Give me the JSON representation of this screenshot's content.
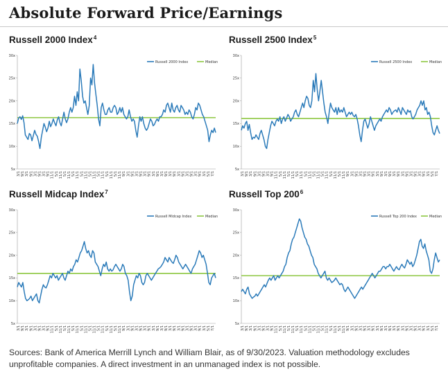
{
  "page": {
    "title": "Absolute Forward Price/Earnings",
    "footnote": "Sources: Bank of America Merrill Lynch and William Blair, as of 9/30/2023. Valuation methodology excludes unprofitable companies. A direct investment in an unmanaged index is not possible."
  },
  "colors": {
    "series": "#2a7ab9",
    "median": "#8cc63f",
    "axis": "#999999",
    "grid": "#e6e6e6"
  },
  "panels": [
    {
      "title": "Russell 2000 Index",
      "sup": "4"
    },
    {
      "title": "Russell 2500 Index",
      "sup": "5"
    },
    {
      "title": "Russell Midcap Index",
      "sup": "7"
    },
    {
      "title": "Russell Top 200",
      "sup": "6"
    }
  ],
  "chart_data": [
    {
      "type": "line",
      "title": "Russell 2000 Index",
      "series_name": "Russell 2000 Index",
      "median_name": "Median",
      "ylim": [
        5,
        30
      ],
      "yticks": [
        "5x",
        "10x",
        "15x",
        "20x",
        "25x",
        "30x"
      ],
      "xticks": [
        "3/1",
        "9/1",
        "3/1",
        "9/1",
        "3/1",
        "9/1",
        "3/1",
        "9/1",
        "11/1",
        "5/1",
        "11/1",
        "5/1",
        "11/1",
        "5/1",
        "11/1",
        "5/1",
        "11/1",
        "5/1",
        "11/1",
        "5/1",
        "11/1",
        "5/1",
        "11/1",
        "5/1",
        "11/1",
        "9/1",
        "3/1",
        "9/1",
        "3/1",
        "9/1",
        "3/1",
        "9/1",
        "3/1",
        "9/1",
        "3/1",
        "9/1",
        "3/1",
        "9/1",
        "3/1",
        "9/1",
        "3/1",
        "9/1",
        "3/1",
        "9/1",
        "3/1",
        "5/1",
        "7/1"
      ],
      "median": 16.3,
      "values": [
        15.0,
        16.2,
        16.5,
        15.9,
        16.7,
        15.2,
        12.5,
        12.0,
        11.5,
        12.8,
        12.5,
        11.2,
        12.3,
        13.5,
        12.6,
        12.2,
        11.0,
        9.5,
        12.0,
        13.5,
        15.0,
        14.2,
        13.2,
        14.0,
        15.5,
        14.3,
        15.0,
        16.0,
        15.2,
        14.5,
        15.8,
        16.5,
        15.2,
        14.5,
        16.0,
        17.5,
        16.0,
        15.2,
        16.0,
        17.5,
        18.5,
        17.5,
        18.5,
        21.0,
        19.0,
        22.0,
        20.0,
        27.0,
        24.5,
        21.0,
        19.5,
        20.0,
        18.5,
        17.0,
        19.0,
        25.0,
        23.5,
        28.0,
        24.0,
        21.5,
        19.0,
        16.0,
        14.5,
        18.5,
        19.5,
        18.0,
        17.0,
        17.0,
        18.0,
        18.5,
        17.5,
        17.5,
        18.5,
        19.0,
        18.5,
        17.0,
        17.5,
        18.5,
        17.5,
        18.5,
        17.0,
        16.5,
        16.0,
        16.5,
        18.0,
        16.5,
        15.5,
        16.0,
        15.5,
        13.5,
        12.0,
        14.5,
        16.5,
        15.5,
        16.5,
        15.0,
        14.0,
        13.5,
        14.0,
        15.0,
        16.0,
        15.5,
        14.5,
        14.8,
        15.5,
        16.0,
        15.5,
        16.5,
        16.5,
        17.0,
        18.0,
        17.5,
        19.0,
        19.5,
        18.5,
        17.5,
        19.5,
        18.0,
        17.5,
        18.5,
        19.0,
        18.0,
        17.5,
        19.0,
        18.5,
        18.0,
        17.0,
        17.5,
        17.0,
        18.0,
        17.5,
        16.5,
        16.0,
        17.0,
        18.5,
        18.0,
        19.5,
        19.0,
        18.0,
        17.0,
        16.5,
        15.5,
        14.5,
        13.5,
        11.0,
        12.5,
        13.5,
        13.0,
        14.0,
        13.0
      ]
    },
    {
      "type": "line",
      "title": "Russell 2500 Index",
      "series_name": "Russell 2500 Index",
      "median_name": "Median",
      "ylim": [
        5,
        30
      ],
      "yticks": [
        "5x",
        "10x",
        "15x",
        "20x",
        "25x",
        "30x"
      ],
      "xticks": [
        "3/1",
        "9/1",
        "3/1",
        "9/1",
        "3/1",
        "9/1",
        "3/1",
        "9/1",
        "11/1",
        "5/1",
        "11/1",
        "5/1",
        "11/1",
        "5/1",
        "11/1",
        "5/1",
        "11/1",
        "5/1",
        "11/1",
        "5/1",
        "11/1",
        "5/1",
        "11/1",
        "5/1",
        "11/1",
        "9/1",
        "3/1",
        "9/1",
        "3/1",
        "9/1",
        "3/1",
        "9/1",
        "3/1",
        "9/1",
        "3/1",
        "9/1",
        "3/1",
        "9/1",
        "3/1",
        "9/1",
        "3/1",
        "9/1",
        "3/1",
        "9/1",
        "3/1",
        "5/1",
        "7/1"
      ],
      "median": 16.1,
      "values": [
        13.5,
        14.5,
        14.0,
        15.0,
        15.5,
        13.5,
        14.8,
        13.0,
        11.5,
        12.0,
        11.8,
        12.5,
        12.0,
        11.5,
        12.8,
        13.5,
        12.5,
        11.5,
        10.0,
        9.5,
        11.5,
        13.0,
        14.5,
        15.5,
        15.0,
        14.5,
        15.5,
        16.0,
        15.5,
        16.5,
        15.0,
        16.0,
        16.5,
        15.5,
        16.2,
        17.0,
        16.5,
        15.5,
        16.0,
        16.5,
        17.5,
        18.0,
        17.0,
        16.5,
        17.5,
        18.5,
        19.5,
        18.5,
        20.0,
        21.0,
        20.5,
        19.0,
        18.5,
        20.0,
        24.5,
        22.0,
        26.0,
        22.5,
        20.0,
        22.0,
        24.5,
        22.0,
        19.5,
        17.5,
        16.5,
        15.0,
        17.5,
        19.5,
        18.5,
        18.0,
        17.5,
        18.5,
        17.0,
        18.5,
        17.5,
        18.0,
        17.5,
        18.5,
        17.5,
        16.5,
        17.0,
        17.5,
        17.0,
        17.5,
        16.8,
        16.5,
        17.0,
        16.0,
        14.5,
        12.5,
        11.0,
        13.5,
        15.5,
        16.0,
        15.0,
        14.0,
        15.0,
        16.5,
        15.5,
        14.5,
        13.5,
        14.5,
        15.0,
        15.5,
        16.0,
        15.5,
        16.5,
        17.0,
        17.5,
        18.0,
        17.5,
        18.5,
        18.0,
        17.0,
        17.5,
        17.8,
        18.0,
        17.5,
        18.5,
        17.8,
        17.0,
        18.5,
        18.0,
        17.5,
        17.0,
        18.0,
        17.5,
        17.8,
        16.5,
        16.0,
        16.5,
        17.0,
        18.0,
        18.5,
        19.0,
        20.0,
        19.0,
        20.0,
        18.0,
        18.5,
        17.0,
        17.5,
        16.5,
        14.5,
        13.0,
        12.5,
        13.5,
        14.5,
        13.5,
        12.8
      ]
    },
    {
      "type": "line",
      "title": "Russell Midcap Index",
      "series_name": "Russell Midcap Index",
      "median_name": "Median",
      "ylim": [
        5,
        30
      ],
      "yticks": [
        "5x",
        "10x",
        "15x",
        "20x",
        "25x",
        "30x"
      ],
      "xticks": [
        "3/1",
        "9/1",
        "3/1",
        "9/1",
        "3/1",
        "9/1",
        "3/1",
        "9/1",
        "11/1",
        "5/1",
        "11/1",
        "5/1",
        "11/1",
        "5/1",
        "11/1",
        "5/1",
        "11/1",
        "5/1",
        "11/1",
        "5/1",
        "11/1",
        "5/1",
        "11/1",
        "5/1",
        "11/1",
        "9/1",
        "3/1",
        "9/1",
        "3/1",
        "9/1",
        "3/1",
        "9/1",
        "3/1",
        "9/1",
        "3/1",
        "9/1",
        "3/1",
        "9/1",
        "3/1",
        "9/1",
        "3/1",
        "9/1",
        "3/1",
        "9/1",
        "3/1",
        "5/1",
        "7/1"
      ],
      "median": 16.0,
      "values": [
        13.0,
        14.0,
        13.5,
        13.0,
        14.0,
        12.0,
        10.5,
        10.0,
        10.2,
        10.5,
        11.0,
        10.0,
        10.5,
        11.0,
        11.5,
        10.0,
        9.5,
        11.0,
        12.5,
        13.5,
        13.0,
        12.8,
        13.5,
        14.5,
        15.5,
        15.0,
        16.0,
        15.5,
        15.0,
        15.5,
        14.5,
        15.0,
        15.5,
        16.0,
        15.0,
        14.5,
        15.5,
        16.5,
        16.0,
        17.0,
        16.5,
        17.5,
        18.0,
        19.0,
        18.5,
        19.5,
        20.5,
        21.0,
        22.0,
        23.0,
        21.5,
        20.5,
        21.0,
        20.0,
        19.5,
        21.0,
        20.5,
        18.5,
        18.0,
        17.5,
        16.5,
        15.5,
        17.0,
        18.0,
        17.5,
        18.5,
        17.0,
        16.5,
        17.0,
        16.5,
        16.8,
        17.5,
        18.0,
        17.5,
        17.0,
        16.5,
        17.0,
        18.0,
        17.5,
        16.0,
        15.5,
        14.5,
        12.0,
        10.0,
        11.0,
        13.5,
        14.5,
        15.5,
        15.0,
        16.0,
        15.5,
        14.0,
        13.5,
        14.0,
        15.5,
        16.0,
        15.5,
        15.0,
        14.5,
        15.0,
        15.5,
        16.0,
        16.5,
        17.0,
        17.2,
        17.5,
        18.0,
        18.5,
        19.5,
        19.0,
        18.5,
        19.5,
        19.0,
        18.5,
        18.2,
        19.0,
        20.0,
        19.5,
        18.5,
        18.0,
        17.5,
        17.0,
        17.5,
        18.0,
        17.5,
        17.0,
        16.5,
        16.0,
        17.0,
        17.5,
        18.0,
        19.0,
        20.0,
        21.0,
        20.5,
        19.5,
        20.0,
        19.0,
        18.0,
        16.0,
        14.0,
        13.5,
        15.0,
        15.5,
        16.0,
        15.0
      ]
    },
    {
      "type": "line",
      "title": "Russell Top 200",
      "series_name": "Russell Top 200 Index",
      "median_name": "Median",
      "ylim": [
        5,
        30
      ],
      "yticks": [
        "5x",
        "10x",
        "15x",
        "20x",
        "25x",
        "30x"
      ],
      "xticks": [
        "3/1",
        "9/1",
        "3/1",
        "9/1",
        "3/1",
        "9/1",
        "3/1",
        "9/1",
        "11/1",
        "5/1",
        "11/1",
        "5/1",
        "11/1",
        "5/1",
        "11/1",
        "5/1",
        "11/1",
        "5/1",
        "11/1",
        "5/1",
        "11/1",
        "5/1",
        "11/1",
        "5/1",
        "11/1",
        "9/1",
        "3/1",
        "9/1",
        "3/1",
        "9/1",
        "3/1",
        "9/1",
        "3/1",
        "9/1",
        "3/1",
        "9/1",
        "3/1",
        "9/1",
        "3/1",
        "9/1",
        "3/1",
        "9/1",
        "3/1",
        "9/1",
        "3/1",
        "5/1",
        "7/1"
      ],
      "median": 15.5,
      "values": [
        12.0,
        12.5,
        12.0,
        11.5,
        12.5,
        13.0,
        11.5,
        11.0,
        10.5,
        10.8,
        11.0,
        11.5,
        11.0,
        11.5,
        12.0,
        12.5,
        13.0,
        13.5,
        13.0,
        13.8,
        14.5,
        15.0,
        14.5,
        15.0,
        15.5,
        14.5,
        15.0,
        15.5,
        15.0,
        15.5,
        16.0,
        16.5,
        17.5,
        18.0,
        19.5,
        20.5,
        21.0,
        22.5,
        23.5,
        24.0,
        25.0,
        26.0,
        27.0,
        28.0,
        27.5,
        26.0,
        25.0,
        24.0,
        23.5,
        22.5,
        22.0,
        21.0,
        20.0,
        19.5,
        18.0,
        17.5,
        17.0,
        16.0,
        15.5,
        15.0,
        15.5,
        16.0,
        16.5,
        15.0,
        14.5,
        15.0,
        14.5,
        14.0,
        14.2,
        14.5,
        15.0,
        14.5,
        14.0,
        13.5,
        13.8,
        13.5,
        12.5,
        12.0,
        12.5,
        13.0,
        12.5,
        12.0,
        11.5,
        11.0,
        10.5,
        11.0,
        11.5,
        12.0,
        12.5,
        13.0,
        12.5,
        13.0,
        13.5,
        14.0,
        14.5,
        15.0,
        15.5,
        16.0,
        15.5,
        15.0,
        15.5,
        16.0,
        16.5,
        16.5,
        17.0,
        17.5,
        17.5,
        17.0,
        17.5,
        17.5,
        18.0,
        17.5,
        17.0,
        16.5,
        17.0,
        17.5,
        17.0,
        16.8,
        17.5,
        18.0,
        17.5,
        17.2,
        18.0,
        19.0,
        18.5,
        18.0,
        18.5,
        17.5,
        18.0,
        19.0,
        20.0,
        21.5,
        23.0,
        23.5,
        22.0,
        21.5,
        22.5,
        21.0,
        20.0,
        19.0,
        16.5,
        16.0,
        17.0,
        19.0,
        20.5,
        19.5,
        18.5,
        19.0
      ]
    }
  ]
}
